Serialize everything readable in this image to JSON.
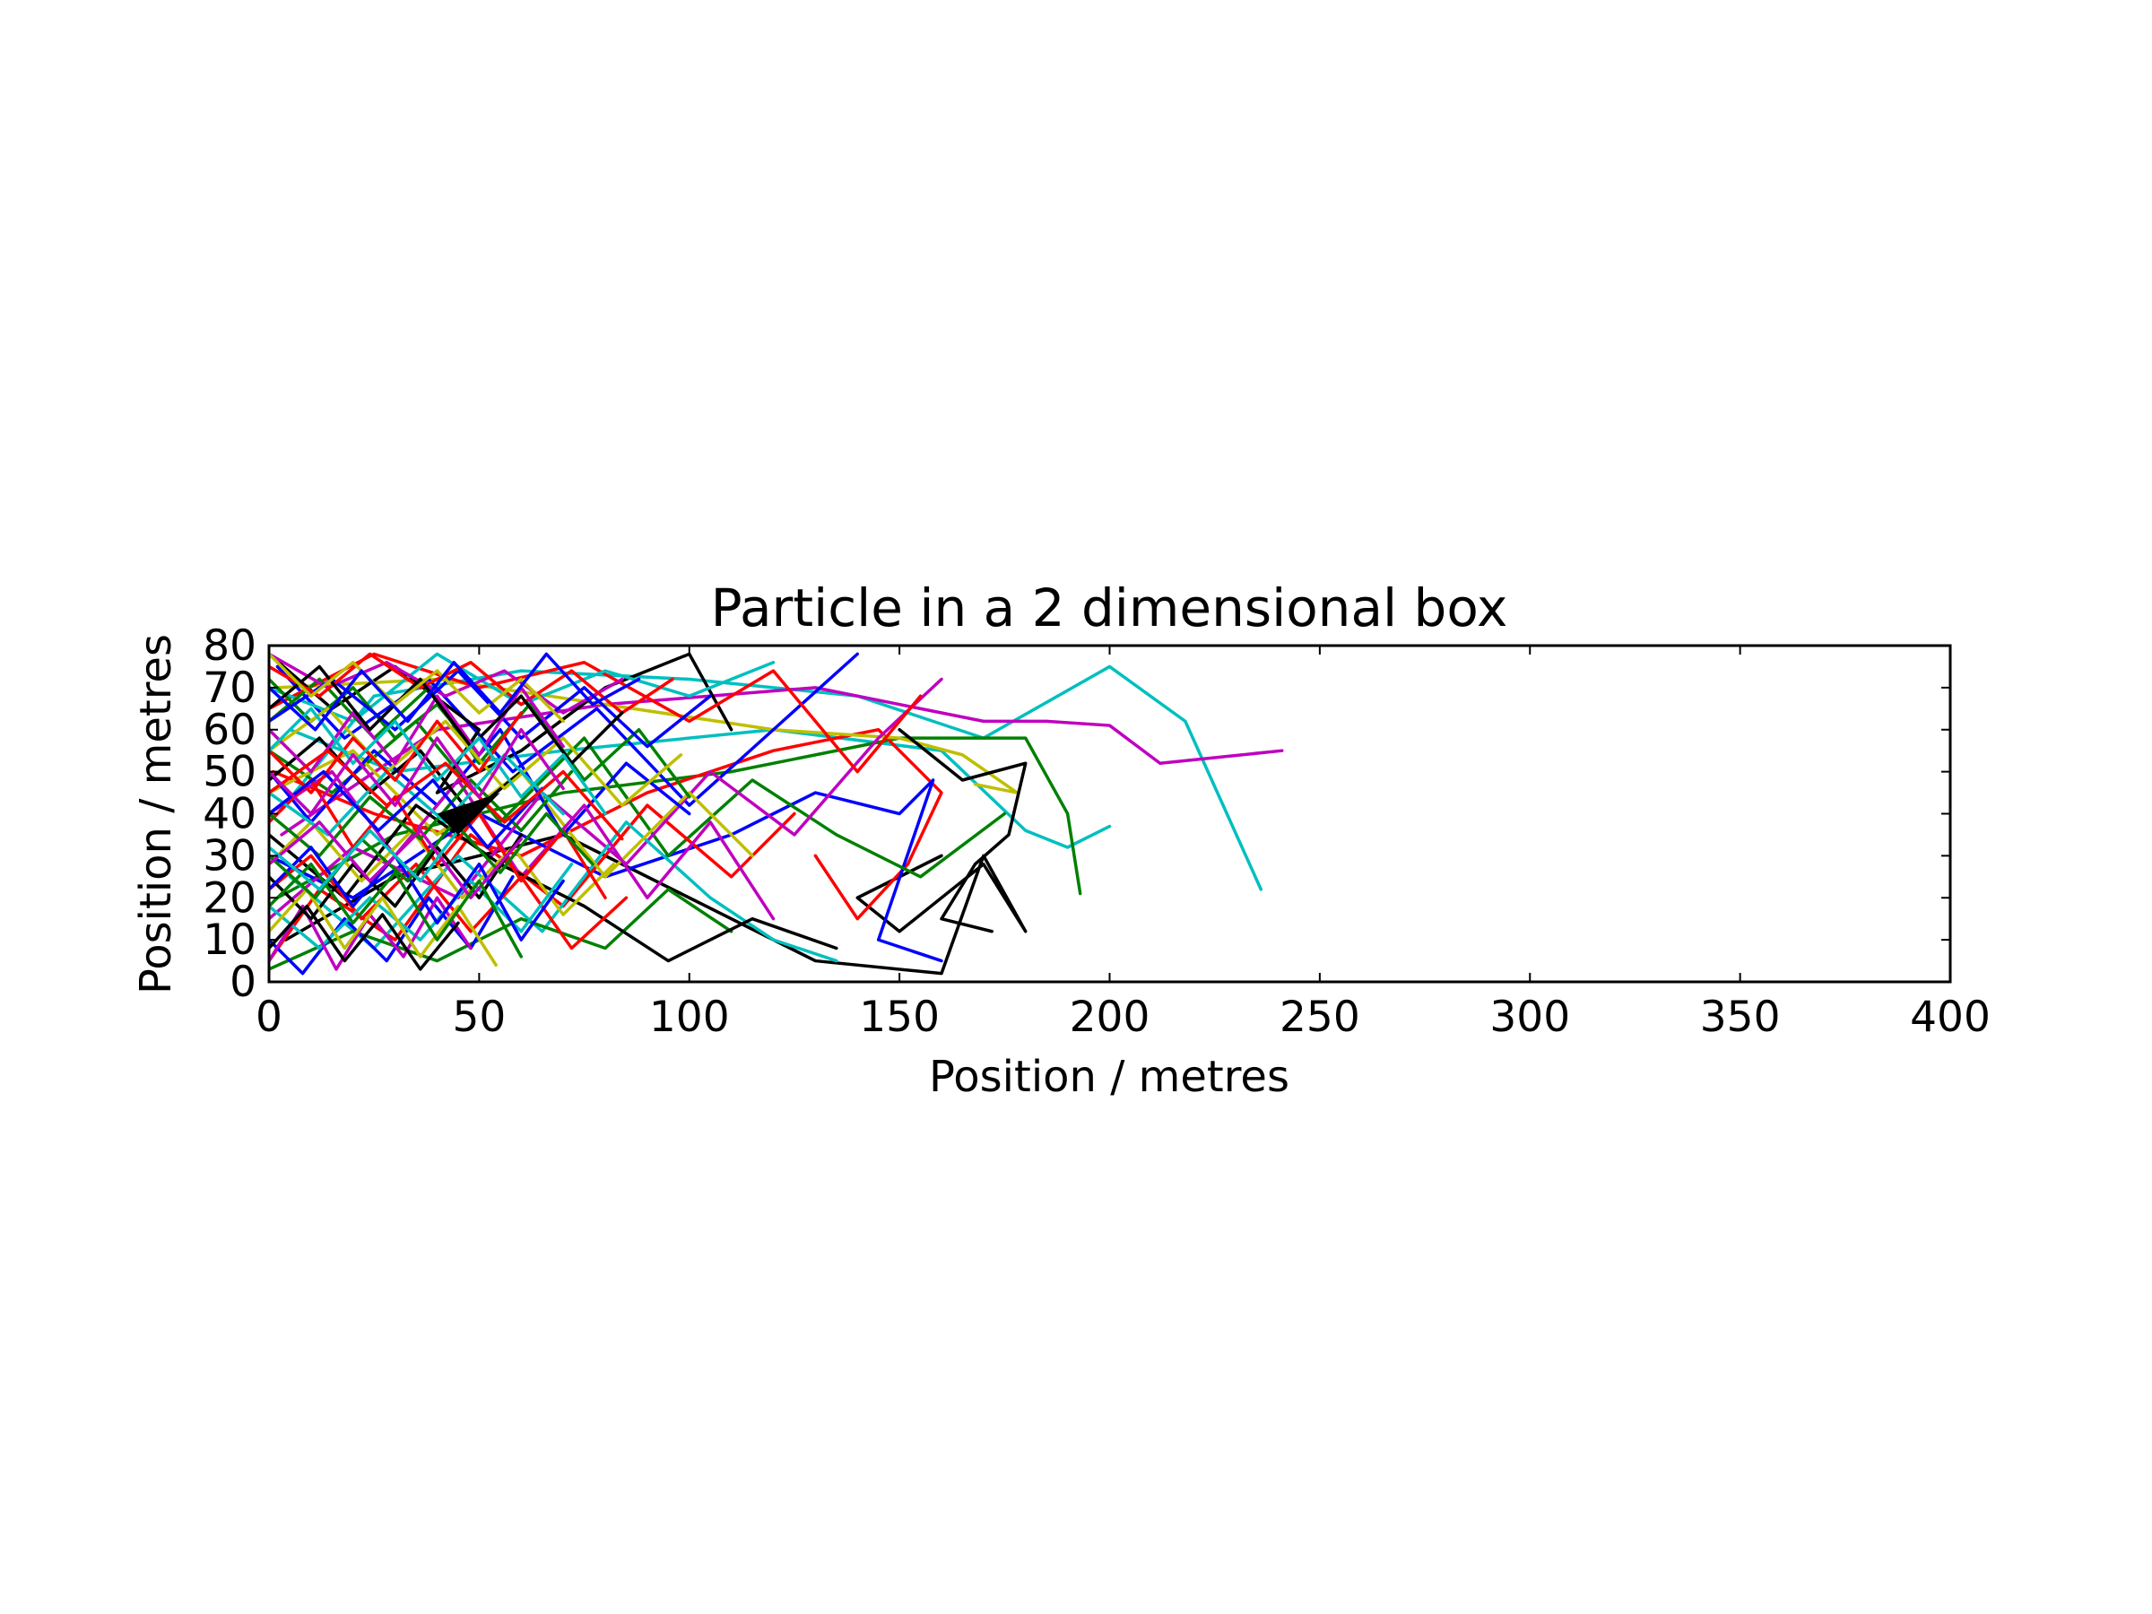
{
  "chart_data": {
    "type": "line",
    "title": "Particle in a 2 dimensional box",
    "xlabel": "Position / metres",
    "ylabel": "Position / metres",
    "xlim": [
      0,
      400
    ],
    "ylim": [
      0,
      80
    ],
    "xticks": [
      0,
      50,
      100,
      150,
      200,
      250,
      300,
      350,
      400
    ],
    "yticks": [
      0,
      10,
      20,
      30,
      40,
      50,
      60,
      70,
      80
    ],
    "grid": false,
    "legend": "none",
    "colors": [
      "#0000ff",
      "#008000",
      "#ff0000",
      "#00bfbf",
      "#bf00bf",
      "#bfbf00",
      "#000000"
    ],
    "series": [
      {
        "color": "#00bfbf",
        "x": [
          2,
          25,
          60,
          100,
          140,
          170,
          200,
          218,
          236
        ],
        "y": [
          40,
          68,
          74,
          72,
          68,
          58,
          75,
          62,
          22
        ]
      },
      {
        "color": "#bf00bf",
        "x": [
          3,
          40,
          80,
          130,
          170,
          185,
          200,
          212,
          241
        ],
        "y": [
          35,
          60,
          66,
          70,
          62,
          62,
          61,
          52,
          55
        ]
      },
      {
        "color": "#00bfbf",
        "x": [
          5,
          30,
          70,
          120,
          160,
          180,
          190,
          200
        ],
        "y": [
          60,
          50,
          55,
          60,
          55,
          36,
          32,
          37
        ]
      },
      {
        "color": "#008000",
        "x": [
          2,
          30,
          70,
          110,
          150,
          180,
          190,
          193
        ],
        "y": [
          20,
          35,
          45,
          50,
          58,
          58,
          40,
          21
        ]
      },
      {
        "color": "#000000",
        "x": [
          4,
          30,
          70,
          100,
          130,
          160,
          170,
          180,
          170,
          150,
          140,
          160
        ],
        "y": [
          10,
          25,
          35,
          20,
          5,
          2,
          30,
          12,
          28,
          12,
          20,
          30
        ]
      },
      {
        "color": "#ff0000",
        "x": [
          1,
          25,
          60,
          90,
          120,
          145,
          160,
          152,
          140,
          130
        ],
        "y": [
          50,
          40,
          30,
          45,
          55,
          60,
          45,
          28,
          15,
          30
        ]
      },
      {
        "color": "#0000ff",
        "x": [
          0,
          20,
          50,
          80,
          110,
          130,
          150,
          158,
          145,
          160
        ],
        "y": [
          30,
          20,
          40,
          25,
          35,
          45,
          40,
          48,
          10,
          5
        ]
      },
      {
        "color": "#bfbf00",
        "x": [
          2,
          40,
          80,
          120,
          150,
          165,
          178,
          168
        ],
        "y": [
          70,
          72,
          66,
          60,
          58,
          54,
          45,
          47
        ]
      },
      {
        "color": "#000000",
        "x": [
          150,
          165,
          180,
          176,
          168,
          160,
          172
        ],
        "y": [
          60,
          48,
          52,
          35,
          28,
          15,
          12
        ]
      },
      {
        "color": "#008000",
        "x": [
          0,
          15,
          35,
          55,
          75,
          95,
          115,
          135,
          155,
          175
        ],
        "y": [
          55,
          45,
          62,
          38,
          58,
          30,
          48,
          35,
          25,
          40
        ]
      },
      {
        "color": "#ff0000",
        "x": [
          0,
          12,
          30,
          48,
          70,
          90,
          110,
          125
        ],
        "y": [
          5,
          22,
          10,
          35,
          18,
          42,
          25,
          40
        ]
      },
      {
        "color": "#0000ff",
        "x": [
          2,
          18,
          38,
          58,
          78,
          100,
          120,
          140
        ],
        "y": [
          75,
          58,
          72,
          50,
          65,
          42,
          60,
          78
        ]
      },
      {
        "color": "#bf00bf",
        "x": [
          0,
          20,
          45,
          65,
          85,
          105,
          125,
          145,
          160
        ],
        "y": [
          15,
          32,
          20,
          45,
          28,
          50,
          35,
          58,
          72
        ]
      },
      {
        "color": "#00bfbf",
        "x": [
          5,
          25,
          45,
          65,
          85,
          105,
          120,
          135
        ],
        "y": [
          25,
          8,
          30,
          12,
          38,
          20,
          10,
          5
        ]
      },
      {
        "color": "#000000",
        "x": [
          0,
          15,
          30,
          50,
          40,
          60,
          80,
          100,
          110
        ],
        "y": [
          78,
          65,
          75,
          60,
          45,
          55,
          70,
          78,
          60
        ]
      },
      {
        "color": "#bfbf00",
        "x": [
          0,
          20,
          40,
          60,
          80,
          100,
          115
        ],
        "y": [
          45,
          55,
          35,
          50,
          25,
          45,
          30
        ]
      },
      {
        "color": "#ff0000",
        "x": [
          0,
          25,
          50,
          75,
          100,
          120,
          140,
          155
        ],
        "y": [
          65,
          78,
          70,
          76,
          62,
          74,
          50,
          68
        ]
      },
      {
        "color": "#008000",
        "x": [
          0,
          20,
          40,
          60,
          80,
          95,
          110
        ],
        "y": [
          3,
          12,
          5,
          15,
          8,
          22,
          12
        ]
      },
      {
        "color": "#0000ff",
        "x": [
          0,
          10,
          25,
          40,
          55,
          70,
          85,
          100
        ],
        "y": [
          50,
          38,
          55,
          42,
          60,
          35,
          52,
          40
        ]
      },
      {
        "color": "#bf00bf",
        "x": [
          0,
          15,
          30,
          45,
          60,
          75,
          90,
          105,
          120
        ],
        "y": [
          40,
          50,
          30,
          48,
          25,
          42,
          20,
          38,
          15
        ]
      },
      {
        "color": "#000000",
        "x": [
          0,
          18,
          35,
          55,
          75,
          95,
          115,
          135
        ],
        "y": [
          35,
          20,
          42,
          28,
          18,
          5,
          15,
          8
        ]
      },
      {
        "color": "#00bfbf",
        "x": [
          0,
          20,
          40,
          60,
          80,
          100,
          120
        ],
        "y": [
          70,
          62,
          78,
          66,
          74,
          68,
          76
        ]
      },
      {
        "color": "#ff0000",
        "x": [
          0,
          10,
          22,
          35,
          48,
          60,
          72,
          85
        ],
        "y": [
          22,
          30,
          15,
          28,
          12,
          25,
          8,
          20
        ]
      },
      {
        "color": "#008000",
        "x": [
          0,
          12,
          25,
          38,
          50,
          62,
          75,
          88,
          100
        ],
        "y": [
          62,
          72,
          58,
          70,
          52,
          66,
          48,
          60,
          44
        ]
      },
      {
        "color": "#0000ff",
        "x": [
          0,
          8,
          18,
          28,
          38,
          48,
          58
        ],
        "y": [
          10,
          2,
          15,
          5,
          20,
          8,
          25
        ]
      },
      {
        "color": "#bfbf00",
        "x": [
          0,
          10,
          22,
          34,
          46,
          58,
          70,
          82
        ],
        "y": [
          28,
          38,
          24,
          36,
          20,
          32,
          16,
          28
        ]
      },
      {
        "color": "#bf00bf",
        "x": [
          0,
          14,
          28,
          42,
          56,
          70,
          84
        ],
        "y": [
          78,
          70,
          76,
          68,
          74,
          64,
          72
        ]
      },
      {
        "color": "#000000",
        "x": [
          0,
          12,
          24,
          36,
          48,
          60
        ],
        "y": [
          48,
          58,
          45,
          55,
          40,
          50
        ]
      },
      {
        "color": "#ff0000",
        "x": [
          0,
          10,
          20,
          30,
          40,
          50,
          60,
          70,
          80
        ],
        "y": [
          38,
          48,
          32,
          44,
          28,
          40,
          24,
          36,
          20
        ]
      },
      {
        "color": "#00bfbf",
        "x": [
          0,
          12,
          24,
          36,
          48,
          60,
          72
        ],
        "y": [
          18,
          8,
          20,
          10,
          24,
          12,
          28
        ]
      },
      {
        "color": "#008000",
        "x": [
          0,
          10,
          20,
          30,
          40,
          50
        ],
        "y": [
          72,
          62,
          70,
          58,
          66,
          54
        ]
      },
      {
        "color": "#0000ff",
        "x": [
          0,
          15,
          30,
          45,
          60,
          75,
          90,
          105
        ],
        "y": [
          62,
          72,
          60,
          74,
          58,
          70,
          56,
          68
        ]
      },
      {
        "color": "#bf00bf",
        "x": [
          0,
          8,
          16,
          24,
          32,
          40,
          48
        ],
        "y": [
          5,
          18,
          3,
          16,
          6,
          20,
          8
        ]
      },
      {
        "color": "#bfbf00",
        "x": [
          0,
          14,
          28,
          42,
          56,
          70,
          84,
          98
        ],
        "y": [
          55,
          65,
          50,
          62,
          46,
          58,
          42,
          54
        ]
      },
      {
        "color": "#000000",
        "x": [
          0,
          10,
          20,
          30,
          40,
          50,
          60
        ],
        "y": [
          25,
          15,
          28,
          18,
          32,
          20,
          35
        ]
      },
      {
        "color": "#ff0000",
        "x": [
          0,
          12,
          24,
          36,
          48,
          60,
          72,
          84,
          96
        ],
        "y": [
          75,
          68,
          78,
          70,
          76,
          66,
          74,
          64,
          72
        ]
      },
      {
        "color": "#008000",
        "x": [
          0,
          12,
          24,
          36,
          48,
          60,
          72
        ],
        "y": [
          40,
          30,
          44,
          34,
          48,
          36,
          50
        ]
      },
      {
        "color": "#0000ff",
        "x": [
          0,
          10,
          20,
          30,
          40,
          50,
          60,
          70
        ],
        "y": [
          22,
          32,
          18,
          30,
          14,
          28,
          10,
          24
        ]
      },
      {
        "color": "#00bfbf",
        "x": [
          0,
          14,
          28,
          42,
          56,
          70
        ],
        "y": [
          45,
          35,
          50,
          38,
          54,
          40
        ]
      },
      {
        "color": "#bf00bf",
        "x": [
          0,
          10,
          20,
          30,
          40,
          50,
          60,
          70
        ],
        "y": [
          60,
          50,
          64,
          52,
          68,
          54,
          70,
          56
        ]
      },
      {
        "color": "#bfbf00",
        "x": [
          0,
          9,
          18,
          27,
          36,
          45,
          54
        ],
        "y": [
          12,
          22,
          8,
          20,
          6,
          18,
          4
        ]
      },
      {
        "color": "#000000",
        "x": [
          0,
          12,
          24,
          36,
          48,
          60,
          72,
          84
        ],
        "y": [
          65,
          75,
          60,
          72,
          56,
          68,
          52,
          64
        ]
      },
      {
        "color": "#ff0000",
        "x": [
          0,
          10,
          20,
          30,
          40,
          50,
          60
        ],
        "y": [
          55,
          45,
          58,
          48,
          62,
          50,
          64
        ]
      },
      {
        "color": "#008000",
        "x": [
          0,
          11,
          22,
          33,
          44,
          55,
          66,
          77
        ],
        "y": [
          30,
          20,
          34,
          24,
          38,
          26,
          40,
          28
        ]
      },
      {
        "color": "#0000ff",
        "x": [
          0,
          13,
          26,
          39,
          52,
          65
        ],
        "y": [
          40,
          50,
          36,
          48,
          32,
          46
        ]
      },
      {
        "color": "#00bfbf",
        "x": [
          0,
          10,
          20,
          30,
          40,
          50,
          60,
          70,
          80
        ],
        "y": [
          55,
          65,
          52,
          62,
          48,
          58,
          44,
          54,
          40
        ]
      },
      {
        "color": "#bf00bf",
        "x": [
          0,
          12,
          24,
          36,
          48,
          60
        ],
        "y": [
          28,
          38,
          24,
          36,
          20,
          34
        ]
      },
      {
        "color": "#bfbf00",
        "x": [
          0,
          10,
          20,
          30,
          40,
          50,
          60,
          70
        ],
        "y": [
          78,
          68,
          76,
          66,
          74,
          64,
          72,
          62
        ]
      },
      {
        "color": "#000000",
        "x": [
          0,
          9,
          18,
          27,
          36,
          45
        ],
        "y": [
          8,
          18,
          5,
          16,
          3,
          14
        ]
      },
      {
        "color": "#ff0000",
        "x": [
          0,
          14,
          28,
          42,
          56,
          70,
          84
        ],
        "y": [
          45,
          55,
          42,
          52,
          38,
          50,
          34
        ]
      },
      {
        "color": "#008000",
        "x": [
          0,
          10,
          20,
          30,
          40,
          50,
          60
        ],
        "y": [
          18,
          28,
          14,
          26,
          10,
          24,
          6
        ]
      },
      {
        "color": "#0000ff",
        "x": [
          0,
          11,
          22,
          33,
          44,
          55,
          66,
          77,
          88
        ],
        "y": [
          70,
          60,
          74,
          62,
          76,
          64,
          78,
          66,
          72
        ]
      },
      {
        "color": "#00bfbf",
        "x": [
          0,
          12,
          24,
          36,
          48
        ],
        "y": [
          32,
          22,
          36,
          24,
          40
        ]
      },
      {
        "color": "#bf00bf",
        "x": [
          0,
          10,
          20,
          30,
          40,
          50,
          60,
          70
        ],
        "y": [
          50,
          40,
          54,
          42,
          58,
          44,
          60,
          46
        ]
      }
    ],
    "fills": [
      {
        "color": "#000000",
        "x": [
          40,
          55,
          45
        ],
        "y": [
          40,
          45,
          35
        ]
      }
    ]
  }
}
